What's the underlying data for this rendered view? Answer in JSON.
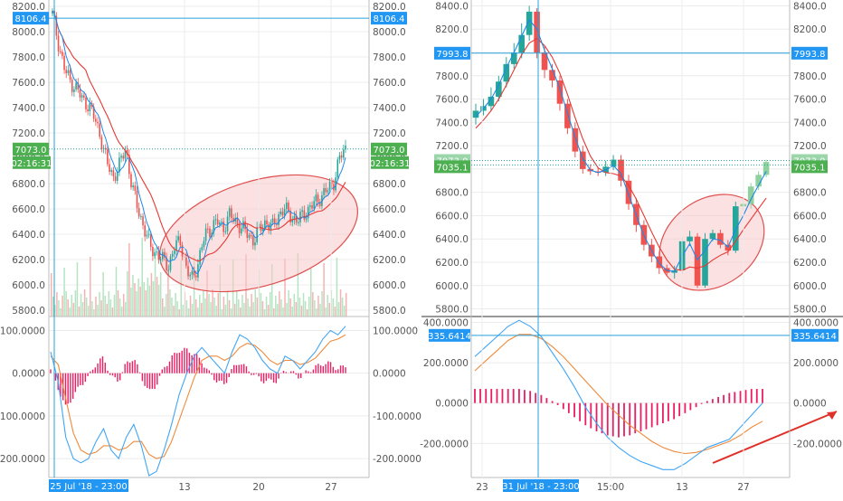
{
  "colors": {
    "up": "#26a69a",
    "up_light": "#8fd19e",
    "down": "#ef5350",
    "ma_red": "#e53935",
    "ma_blue": "#1e88e5",
    "macd_blue": "#42a5f5",
    "signal_orange": "#ef8a3c",
    "hist": "#e91e63",
    "crosshair": "#26a0da",
    "badge": "#2196f3",
    "price_badge": "#4caf50",
    "ellipse_fill": "#f8c9c9",
    "ellipse_stroke": "#e05050",
    "grid": "#ececec",
    "axis_text": "#555555"
  },
  "chart_data": [
    {
      "type": "candlestick",
      "panel": "left-price",
      "ylim": [
        5750,
        8250
      ],
      "y_ticks": [
        "8200.0",
        "8000.0",
        "7800.0",
        "7600.0",
        "7400.0",
        "7200.0",
        "7000.0",
        "6800.0",
        "6600.0",
        "6400.0",
        "6200.0",
        "6000.0",
        "5800.0"
      ],
      "x_ticks": [
        "13",
        "20",
        "27"
      ],
      "crosshair_date_label": "25 Jul '18 - 23:00",
      "crosshair_price": "8106.4",
      "last_price": "7073.0",
      "countdown": "02:16:31",
      "trend_path": [
        8140,
        7900,
        7700,
        7600,
        7550,
        7450,
        7420,
        7300,
        7150,
        6950,
        6850,
        6950,
        7080,
        6780,
        6600,
        6450,
        6300,
        6250,
        6200,
        6150,
        6300,
        6350,
        6100,
        6050,
        6200,
        6400,
        6450,
        6500,
        6450,
        6550,
        6500,
        6450,
        6400,
        6350,
        6450,
        6500,
        6450,
        6550,
        6600,
        6550,
        6500,
        6550,
        6600,
        6650,
        6700,
        6750,
        6800,
        7000,
        7073
      ],
      "ellipse_note": "highlighted consolidation zone"
    },
    {
      "type": "line",
      "panel": "left-macd",
      "ylim": [
        -240,
        120
      ],
      "y_ticks": [
        "100.0000",
        "0.0000",
        "-100.0000",
        "-200.0000"
      ],
      "macd_path": [
        50,
        -20,
        -150,
        -200,
        -210,
        -200,
        -160,
        -130,
        -180,
        -200,
        -150,
        -120,
        -170,
        -240,
        -230,
        -180,
        -120,
        -50,
        0,
        40,
        60,
        40,
        20,
        0,
        50,
        90,
        80,
        60,
        30,
        10,
        0,
        40,
        30,
        10,
        30,
        50,
        80,
        100,
        90,
        110
      ],
      "signal_path": [
        40,
        20,
        -60,
        -140,
        -180,
        -190,
        -185,
        -170,
        -170,
        -180,
        -175,
        -160,
        -160,
        -190,
        -200,
        -195,
        -160,
        -110,
        -60,
        -10,
        30,
        40,
        40,
        30,
        40,
        60,
        70,
        65,
        50,
        30,
        20,
        30,
        30,
        20,
        25,
        35,
        55,
        75,
        80,
        90
      ]
    },
    {
      "type": "candlestick",
      "panel": "right-price",
      "ylim": [
        5750,
        8450
      ],
      "y_ticks": [
        "8400.0",
        "8200.0",
        "8000.0",
        "7800.0",
        "7600.0",
        "7400.0",
        "7200.0",
        "7000.0",
        "6800.0",
        "6600.0",
        "6400.0",
        "6200.0",
        "6000.0",
        "5800.0"
      ],
      "x_ticks": [
        "23",
        "15:00",
        "13",
        "27"
      ],
      "crosshair_date_label": "31 Jul '18 - 23:00",
      "crosshair_price": "7993.8",
      "last_price": "7073.0",
      "current_price": "7035.1",
      "candles": [
        {
          "o": 7440,
          "c": 7500,
          "h": 7560,
          "l": 7380
        },
        {
          "o": 7500,
          "c": 7540,
          "h": 7600,
          "l": 7460
        },
        {
          "o": 7540,
          "c": 7620,
          "h": 7700,
          "l": 7500
        },
        {
          "o": 7620,
          "c": 7750,
          "h": 7800,
          "l": 7580
        },
        {
          "o": 7750,
          "c": 7900,
          "h": 7960,
          "l": 7700
        },
        {
          "o": 7900,
          "c": 8000,
          "h": 8080,
          "l": 7860
        },
        {
          "o": 8000,
          "c": 8150,
          "h": 8250,
          "l": 7950
        },
        {
          "o": 8150,
          "c": 8350,
          "h": 8400,
          "l": 8100
        },
        {
          "o": 8350,
          "c": 8000,
          "h": 8380,
          "l": 7950
        },
        {
          "o": 8000,
          "c": 7850,
          "h": 8050,
          "l": 7780
        },
        {
          "o": 7850,
          "c": 7760,
          "h": 7900,
          "l": 7700
        },
        {
          "o": 7760,
          "c": 7560,
          "h": 7800,
          "l": 7500
        },
        {
          "o": 7560,
          "c": 7350,
          "h": 7600,
          "l": 7300
        },
        {
          "o": 7350,
          "c": 7150,
          "h": 7400,
          "l": 7100
        },
        {
          "o": 7150,
          "c": 7000,
          "h": 7200,
          "l": 6960
        },
        {
          "o": 7000,
          "c": 6980,
          "h": 7040,
          "l": 6950
        },
        {
          "o": 6980,
          "c": 6970,
          "h": 7010,
          "l": 6940
        },
        {
          "o": 6970,
          "c": 7020,
          "h": 7070,
          "l": 6940
        },
        {
          "o": 7020,
          "c": 7080,
          "h": 7120,
          "l": 6990
        },
        {
          "o": 7080,
          "c": 6900,
          "h": 7120,
          "l": 6850
        },
        {
          "o": 6900,
          "c": 6700,
          "h": 6950,
          "l": 6650
        },
        {
          "o": 6700,
          "c": 6520,
          "h": 6750,
          "l": 6460
        },
        {
          "o": 6520,
          "c": 6350,
          "h": 6560,
          "l": 6300
        },
        {
          "o": 6350,
          "c": 6250,
          "h": 6400,
          "l": 6200
        },
        {
          "o": 6250,
          "c": 6150,
          "h": 6290,
          "l": 6100
        },
        {
          "o": 6150,
          "c": 6110,
          "h": 6180,
          "l": 6080
        },
        {
          "o": 6110,
          "c": 6130,
          "h": 6170,
          "l": 6060
        },
        {
          "o": 6130,
          "c": 6380,
          "h": 6420,
          "l": 6100
        },
        {
          "o": 6380,
          "c": 6420,
          "h": 6470,
          "l": 6340
        },
        {
          "o": 6420,
          "c": 6000,
          "h": 6450,
          "l": 5980
        },
        {
          "o": 6000,
          "c": 6400,
          "h": 6450,
          "l": 5980
        },
        {
          "o": 6400,
          "c": 6450,
          "h": 6480,
          "l": 6380
        },
        {
          "o": 6450,
          "c": 6350,
          "h": 6480,
          "l": 6320
        },
        {
          "o": 6350,
          "c": 6300,
          "h": 6390,
          "l": 6260
        },
        {
          "o": 6300,
          "c": 6680,
          "h": 6720,
          "l": 6280
        },
        {
          "o": 6680,
          "c": 6700,
          "h": 6760,
          "l": 6640
        },
        {
          "o": 6700,
          "c": 6850,
          "h": 6880,
          "l": 6660
        },
        {
          "o": 6850,
          "c": 6950,
          "h": 6980,
          "l": 6820
        },
        {
          "o": 6950,
          "c": 7060,
          "h": 7080,
          "l": 6930
        }
      ],
      "ma_red": [
        7350,
        7420,
        7500,
        7600,
        7720,
        7850,
        7980,
        8080,
        8120,
        8060,
        7960,
        7820,
        7640,
        7440,
        7260,
        7110,
        7010,
        6970,
        6960,
        6940,
        6860,
        6740,
        6600,
        6460,
        6330,
        6220,
        6140,
        6130,
        6160,
        6150,
        6170,
        6220,
        6260,
        6290,
        6380,
        6480,
        6570,
        6660,
        6750
      ],
      "ma_blue": [
        7450,
        7520,
        7600,
        7720,
        7870,
        8000,
        8140,
        8280,
        8200,
        8020,
        7860,
        7690,
        7480,
        7270,
        7090,
        6990,
        6970,
        6990,
        7030,
        6960,
        6780,
        6600,
        6430,
        6300,
        6190,
        6130,
        6120,
        6250,
        6360,
        6220,
        6300,
        6400,
        6390,
        6330,
        6480,
        6600,
        6740,
        6860,
        6980
      ],
      "ellipse_note": "highlighted reversal zone"
    },
    {
      "type": "line",
      "panel": "right-macd",
      "ylim": [
        -360,
        420
      ],
      "y_ticks": [
        "400.0000",
        "200.0000",
        "0.0000",
        "-200.0000"
      ],
      "crosshair_value": "335.6414",
      "macd": [
        230,
        280,
        330,
        380,
        410,
        380,
        330,
        250,
        170,
        80,
        -20,
        -100,
        -170,
        -220,
        -260,
        -290,
        -310,
        -330,
        -330,
        -300,
        -260,
        -220,
        -200,
        -180,
        -120,
        -60,
        0
      ],
      "signal": [
        160,
        210,
        260,
        310,
        340,
        340,
        320,
        280,
        230,
        170,
        110,
        50,
        -10,
        -60,
        -110,
        -150,
        -190,
        -220,
        -240,
        -250,
        -245,
        -230,
        -210,
        -190,
        -160,
        -120,
        -90
      ],
      "histogram": [
        70,
        70,
        70,
        70,
        70,
        60,
        40,
        10,
        -30,
        -70,
        -110,
        -140,
        -160,
        -170,
        -160,
        -140,
        -120,
        -100,
        -80,
        -50,
        -20,
        10,
        30,
        50,
        60,
        70,
        70
      ],
      "trend_arrow_note": "rising trendline"
    }
  ]
}
